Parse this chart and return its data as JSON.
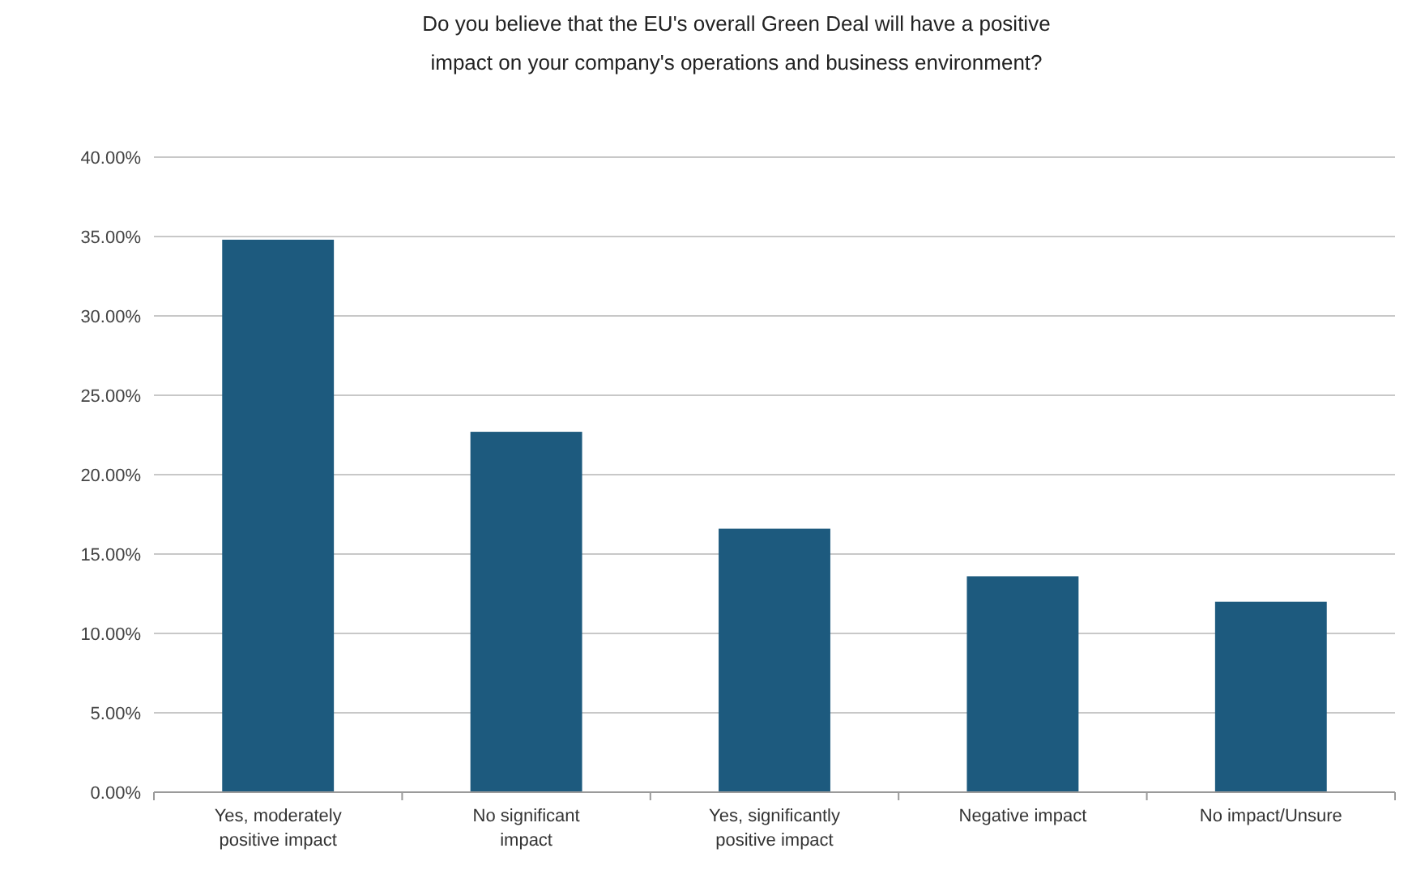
{
  "chart_data": {
    "type": "bar",
    "title": "Do you believe that the EU's overall Green Deal will have a positive impact on your company's operations and business environment?",
    "categories": [
      "Yes, moderately positive impact",
      "No significant impact",
      "Yes, significantly positive impact",
      "Negative impact",
      "No impact/Unsure"
    ],
    "values": [
      34.8,
      22.7,
      16.6,
      13.6,
      12.0
    ],
    "color": "#1d5a7e",
    "ylim": [
      0,
      40
    ],
    "yticks": [
      {
        "value": 0,
        "label": "0.00%"
      },
      {
        "value": 5,
        "label": "5.00%"
      },
      {
        "value": 10,
        "label": "10.00%"
      },
      {
        "value": 15,
        "label": "15.00%"
      },
      {
        "value": 20,
        "label": "20.00%"
      },
      {
        "value": 25,
        "label": "25.00%"
      },
      {
        "value": 30,
        "label": "30.00%"
      },
      {
        "value": 35,
        "label": "35.00%"
      },
      {
        "value": 40,
        "label": "40.00%"
      }
    ],
    "grid": "y"
  }
}
